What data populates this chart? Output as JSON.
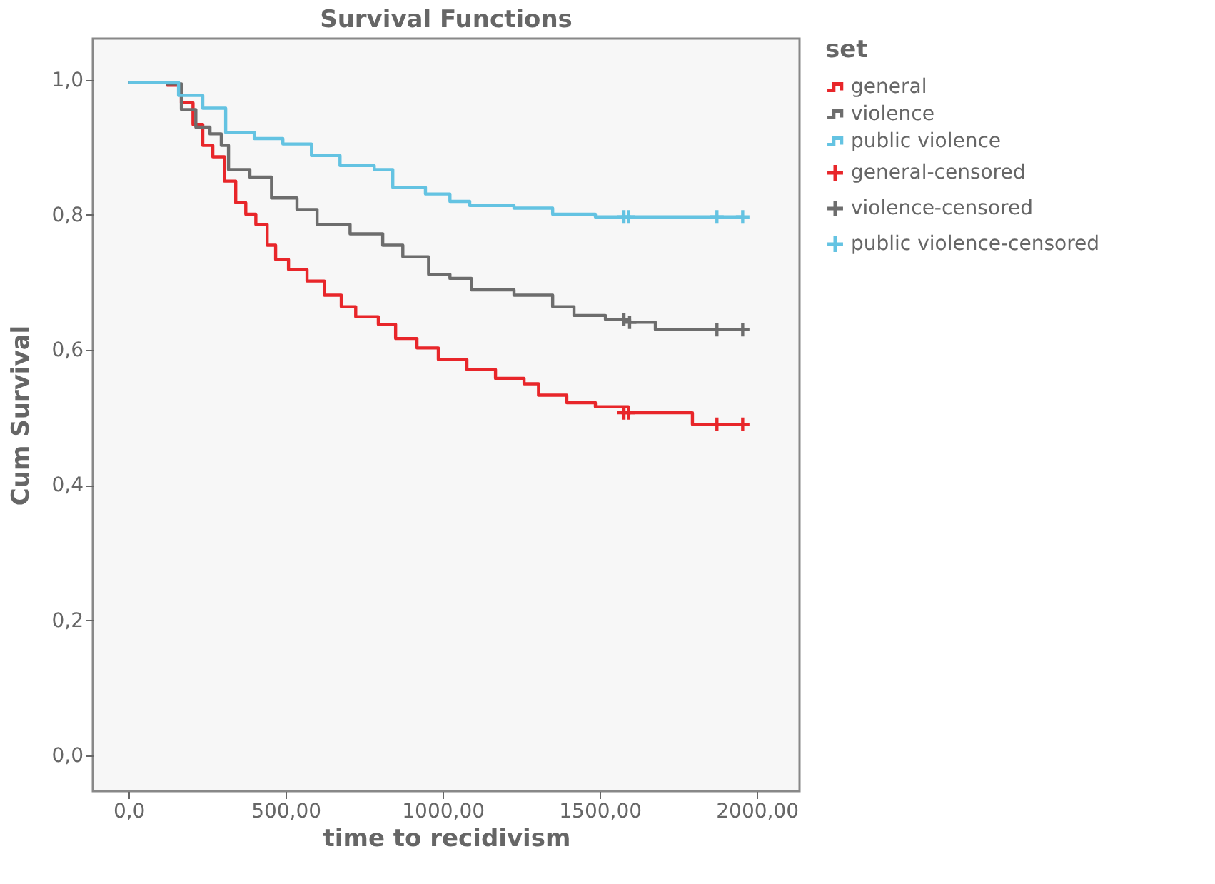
{
  "chart_data": {
    "type": "step",
    "title": "Survival Functions",
    "xlabel": "time to recidivism",
    "ylabel": "Cum Survival",
    "legend_title": "set",
    "legend": "top right",
    "grid": false,
    "line_style": "solid",
    "xlim": [
      -114,
      2136
    ],
    "ylim": [
      -0.053,
      1.061
    ],
    "xticks": [
      {
        "value": 0,
        "label": "0,0"
      },
      {
        "value": 500,
        "label": "500,00"
      },
      {
        "value": 1000,
        "label": "1000,00"
      },
      {
        "value": 1500,
        "label": "1500,00"
      },
      {
        "value": 2000,
        "label": "2000,00"
      }
    ],
    "yticks": [
      {
        "value": 0,
        "label": "0,0"
      },
      {
        "value": 0.2,
        "label": "0,2"
      },
      {
        "value": 0.4,
        "label": "0,4"
      },
      {
        "value": 0.6,
        "label": "0,6"
      },
      {
        "value": 0.8,
        "label": "0,8"
      },
      {
        "value": 1.0,
        "label": "1,0"
      }
    ],
    "series": [
      {
        "name": "general",
        "color": "#e8262a",
        "x": [
          0,
          123,
          168,
          205,
          236,
          268,
          305,
          341,
          373,
          405,
          441,
          468,
          509,
          568,
          623,
          677,
          723,
          795,
          850,
          918,
          986,
          1077,
          1168,
          1259,
          1305,
          1395,
          1486,
          1591,
          1795,
          1955
        ],
        "values": [
          0.996,
          0.992,
          0.966,
          0.934,
          0.903,
          0.886,
          0.85,
          0.818,
          0.801,
          0.786,
          0.755,
          0.734,
          0.719,
          0.702,
          0.681,
          0.664,
          0.649,
          0.638,
          0.617,
          0.603,
          0.586,
          0.571,
          0.558,
          0.55,
          0.533,
          0.522,
          0.516,
          0.507,
          0.49,
          0.49
        ]
      },
      {
        "name": "violence",
        "color": "#6d6d6d",
        "x": [
          0,
          123,
          168,
          214,
          259,
          295,
          318,
          386,
          455,
          536,
          600,
          705,
          809,
          873,
          955,
          1023,
          1091,
          1227,
          1350,
          1418,
          1518,
          1595,
          1677,
          1955
        ],
        "values": [
          0.996,
          0.994,
          0.956,
          0.93,
          0.92,
          0.903,
          0.867,
          0.856,
          0.825,
          0.808,
          0.786,
          0.772,
          0.755,
          0.738,
          0.712,
          0.706,
          0.689,
          0.681,
          0.664,
          0.651,
          0.645,
          0.641,
          0.63,
          0.63
        ]
      },
      {
        "name": "public violence",
        "color": "#64c3e2",
        "x": [
          0,
          123,
          159,
          236,
          309,
          400,
          491,
          582,
          673,
          782,
          841,
          945,
          1023,
          1086,
          1227,
          1350,
          1486,
          1955
        ],
        "values": [
          0.996,
          0.996,
          0.977,
          0.958,
          0.922,
          0.913,
          0.905,
          0.888,
          0.873,
          0.867,
          0.841,
          0.831,
          0.82,
          0.814,
          0.81,
          0.801,
          0.797,
          0.797
        ]
      },
      {
        "name": "general-censored",
        "color": "#e8262a",
        "type": "scatter",
        "marker": "cross",
        "x": [
          1577,
          1591,
          1873,
          1955
        ],
        "values": [
          0.507,
          0.507,
          0.49,
          0.49
        ]
      },
      {
        "name": "violence-censored",
        "color": "#6d6d6d",
        "type": "scatter",
        "marker": "cross",
        "x": [
          1577,
          1595,
          1873,
          1955
        ],
        "values": [
          0.645,
          0.641,
          0.63,
          0.63
        ]
      },
      {
        "name": "public violence-censored",
        "color": "#64c3e2",
        "type": "scatter",
        "marker": "cross",
        "x": [
          1577,
          1591,
          1873,
          1955
        ],
        "values": [
          0.797,
          0.797,
          0.797,
          0.797
        ]
      }
    ]
  }
}
